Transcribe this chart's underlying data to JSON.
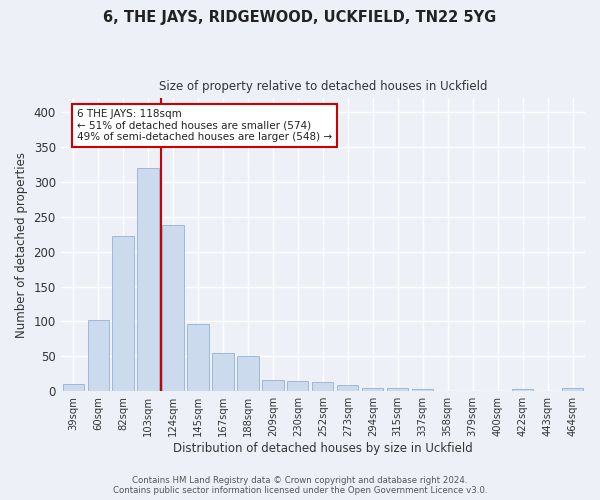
{
  "title": "6, THE JAYS, RIDGEWOOD, UCKFIELD, TN22 5YG",
  "subtitle": "Size of property relative to detached houses in Uckfield",
  "xlabel": "Distribution of detached houses by size in Uckfield",
  "ylabel": "Number of detached properties",
  "bar_color": "#ccdaee",
  "bar_edge_color": "#a0b8d8",
  "categories": [
    "39sqm",
    "60sqm",
    "82sqm",
    "103sqm",
    "124sqm",
    "145sqm",
    "167sqm",
    "188sqm",
    "209sqm",
    "230sqm",
    "252sqm",
    "273sqm",
    "294sqm",
    "315sqm",
    "337sqm",
    "358sqm",
    "379sqm",
    "400sqm",
    "422sqm",
    "443sqm",
    "464sqm"
  ],
  "values": [
    11,
    102,
    223,
    320,
    238,
    96,
    55,
    51,
    16,
    14,
    13,
    9,
    4,
    4,
    3,
    0,
    0,
    0,
    3,
    0,
    4
  ],
  "ylim": [
    0,
    420
  ],
  "yticks": [
    0,
    50,
    100,
    150,
    200,
    250,
    300,
    350,
    400
  ],
  "vline_x_index": 3.5,
  "vline_color": "#cc0000",
  "annotation_text": "6 THE JAYS: 118sqm\n← 51% of detached houses are smaller (574)\n49% of semi-detached houses are larger (548) →",
  "annotation_box_color": "#ffffff",
  "annotation_box_edge_color": "#cc0000",
  "footer_line1": "Contains HM Land Registry data © Crown copyright and database right 2024.",
  "footer_line2": "Contains public sector information licensed under the Open Government Licence v3.0.",
  "background_color": "#edf1f7",
  "grid_color": "#ffffff"
}
